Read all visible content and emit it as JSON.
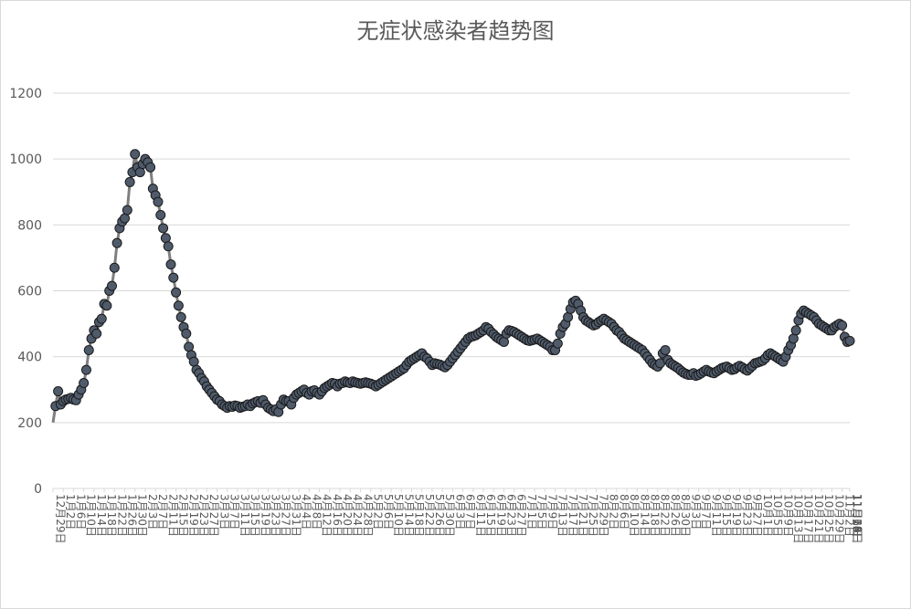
{
  "chart_data": {
    "type": "line",
    "title": "无症状感染者趋势图",
    "xlabel": "",
    "ylabel": "",
    "ylim": [
      0,
      1200
    ],
    "y_ticks": [
      "0",
      "200",
      "400",
      "600",
      "800",
      "1000",
      "1200"
    ],
    "grid": "horizontal",
    "legend": "none",
    "colors": {
      "line": "#7f7f7f",
      "marker_fill": "#4f5b6b",
      "marker_edge": "#1a1a1a",
      "grid": "#d9d9d9",
      "text": "#595959"
    },
    "x_start": "12月29日",
    "x_end": "11月27日",
    "x_step_days": 1,
    "x_ticks": [
      "12月29日",
      "1月2日",
      "1月6日",
      "1月10日",
      "1月14日",
      "1月18日",
      "1月22日",
      "1月26日",
      "1月30日",
      "2月3日",
      "2月7日",
      "2月11日",
      "2月15日",
      "2月19日",
      "2月23日",
      "2月27日",
      "3月3日",
      "3月7日",
      "3月11日",
      "3月15日",
      "3月19日",
      "3月23日",
      "3月27日",
      "3月31日",
      "4月4日",
      "4月8日",
      "4月12日",
      "4月16日",
      "4月20日",
      "4月24日",
      "4月28日",
      "5月2日",
      "5月6日",
      "5月10日",
      "5月14日",
      "5月18日",
      "5月22日",
      "5月26日",
      "5月30日",
      "6月3日",
      "6月7日",
      "6月11日",
      "6月15日",
      "6月19日",
      "6月23日",
      "6月27日",
      "7月1日",
      "7月5日",
      "7月9日",
      "7月13日",
      "7月17日",
      "7月21日",
      "7月25日",
      "7月29日",
      "8月2日",
      "8月6日",
      "8月10日",
      "8月14日",
      "8月18日",
      "8月22日",
      "8月26日",
      "8月30日",
      "9月3日",
      "9月7日",
      "9月11日",
      "9月15日",
      "9月19日",
      "9月23日",
      "9月27日",
      "10月1日",
      "10月5日",
      "10月9日",
      "10月13日",
      "10月17日",
      "10月21日",
      "10月25日",
      "10月29日",
      "11月2日",
      "11月6日",
      "11月10日",
      "11月14日",
      "11月18日",
      "11月22日",
      "11月26日"
    ],
    "series": [
      {
        "values": [
          200,
          250,
          295,
          255,
          265,
          270,
          272,
          275,
          270,
          268,
          285,
          300,
          320,
          360,
          420,
          455,
          480,
          470,
          505,
          515,
          560,
          555,
          600,
          615,
          670,
          745,
          790,
          810,
          820,
          845,
          930,
          960,
          1015,
          975,
          960,
          985,
          1000,
          990,
          975,
          910,
          890,
          870,
          830,
          790,
          760,
          735,
          680,
          640,
          595,
          555,
          520,
          490,
          470,
          430,
          405,
          385,
          360,
          350,
          335,
          325,
          310,
          300,
          290,
          280,
          270,
          265,
          255,
          250,
          245,
          250,
          248,
          252,
          250,
          245,
          248,
          250,
          255,
          250,
          258,
          262,
          265,
          260,
          268,
          255,
          245,
          240,
          235,
          240,
          232,
          255,
          270,
          265,
          265,
          255,
          275,
          285,
          290,
          295,
          300,
          290,
          285,
          295,
          298,
          290,
          285,
          295,
          305,
          310,
          315,
          320,
          318,
          310,
          318,
          320,
          325,
          322,
          320,
          325,
          322,
          320,
          318,
          320,
          322,
          320,
          318,
          315,
          310,
          315,
          320,
          325,
          330,
          335,
          340,
          345,
          350,
          355,
          360,
          365,
          375,
          385,
          390,
          395,
          400,
          405,
          410,
          400,
          395,
          385,
          375,
          380,
          378,
          376,
          372,
          368,
          375,
          385,
          395,
          405,
          415,
          425,
          435,
          445,
          455,
          460,
          462,
          465,
          470,
          475,
          480,
          490,
          485,
          475,
          468,
          460,
          455,
          450,
          445,
          470,
          480,
          478,
          475,
          470,
          465,
          460,
          455,
          450,
          448,
          450,
          452,
          455,
          450,
          445,
          440,
          435,
          430,
          420,
          420,
          440,
          470,
          490,
          500,
          520,
          545,
          565,
          570,
          560,
          540,
          520,
          510,
          505,
          500,
          495,
          498,
          505,
          510,
          515,
          510,
          505,
          500,
          490,
          480,
          475,
          465,
          455,
          450,
          445,
          440,
          435,
          430,
          425,
          420,
          410,
          400,
          390,
          380,
          375,
          370,
          380,
          410,
          420,
          390,
          380,
          375,
          370,
          365,
          358,
          352,
          348,
          345,
          345,
          350,
          342,
          345,
          350,
          355,
          360,
          355,
          352,
          350,
          355,
          360,
          365,
          368,
          370,
          365,
          360,
          362,
          368,
          372,
          368,
          362,
          358,
          365,
          372,
          380,
          382,
          385,
          388,
          395,
          405,
          410,
          405,
          400,
          395,
          390,
          385,
          400,
          420,
          435,
          455,
          480,
          510,
          530,
          540,
          535,
          530,
          525,
          520,
          510,
          500,
          495,
          490,
          485,
          480,
          480,
          490,
          495,
          500,
          495,
          460,
          445,
          448
        ]
      }
    ]
  }
}
